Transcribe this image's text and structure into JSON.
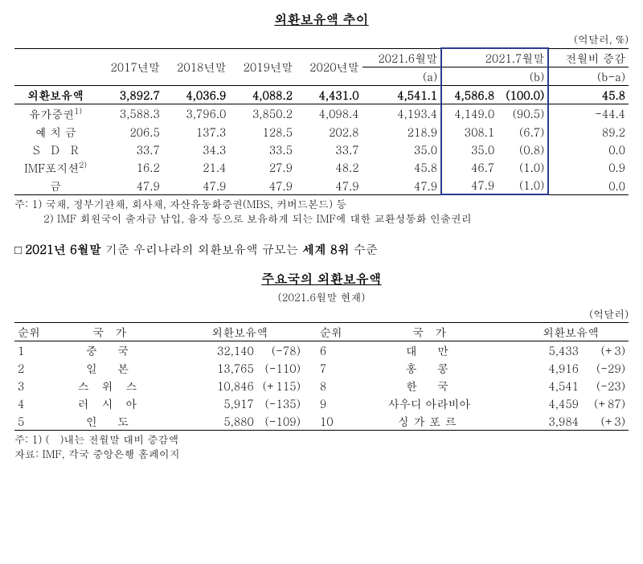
{
  "section1": {
    "title": "외환보유액 추이",
    "unit": "(억달러, %)",
    "headers": {
      "c1": "2017년말",
      "c2": "2018년말",
      "c3": "2019년말",
      "c4": "2020년말",
      "c5a": "2021.6월말",
      "c5b": "(a)",
      "c6a": "2021.7월말",
      "c6b": "(b)",
      "c7a": "전월비 증감",
      "c7b": "(b-a)"
    },
    "rows": [
      {
        "label": "외환보유액",
        "v": [
          "3,892.7",
          "4,036.9",
          "4,088.2",
          "4,431.0",
          "4,541.1",
          "4,586.8",
          "(100.0)",
          "45.8"
        ]
      },
      {
        "label": "유가증권",
        "sup": "1)",
        "v": [
          "3,588.3",
          "3,796.0",
          "3,850.2",
          "4,098.4",
          "4,193.4",
          "4,149.0",
          "(90.5)",
          "-44.4"
        ]
      },
      {
        "label": "예 치 금",
        "v": [
          "206.5",
          "137.3",
          "128.5",
          "202.8",
          "218.9",
          "308.1",
          "(6.7)",
          "89.2"
        ]
      },
      {
        "label": "S　D　R",
        "v": [
          "33.7",
          "34.3",
          "33.5",
          "33.7",
          "35.0",
          "35.0",
          "(0.8)",
          "0.0"
        ]
      },
      {
        "label": "IMF포지션",
        "sup": "2)",
        "v": [
          "16.2",
          "21.4",
          "27.9",
          "48.2",
          "45.8",
          "46.7",
          "(1.0)",
          "0.9"
        ]
      },
      {
        "label": "금",
        "v": [
          "47.9",
          "47.9",
          "47.9",
          "47.9",
          "47.9",
          "47.9",
          "(1.0)",
          "0.0"
        ]
      }
    ],
    "notes": {
      "n1": "주: 1) 국채, 정부기관채, 회사채, 자산유동화증권(MBS, 커버드본드) 등",
      "n2": "2) IMF 회원국이 출자금 납입, 융자 등으로 보유하게 되는 IMF에 대한 교환성통화 인출권리"
    }
  },
  "midline": {
    "prefix": "□ ",
    "bold1": "2021년 6월말",
    "mid": " 기준 우리나라의 외환보유액 규모는 ",
    "bold2": "세계 8위",
    "suffix": " 수준"
  },
  "section2": {
    "title": "주요국의 외환보유액",
    "subtitle": "(2021.6월말 현재)",
    "unit": "(억달러)",
    "headers": {
      "rank": "순위",
      "country": "국　가",
      "amount": "외환보유액"
    },
    "left": [
      {
        "r": "1",
        "c": "중　국",
        "a": "32,140",
        "d": "(-78)"
      },
      {
        "r": "2",
        "c": "일　본",
        "a": "13,765",
        "d": "(-110)"
      },
      {
        "r": "3",
        "c": "스 위 스",
        "a": "10,846",
        "d": "(+115)"
      },
      {
        "r": "4",
        "c": "러 시 아",
        "a": "5,917",
        "d": "(-135)"
      },
      {
        "r": "5",
        "c": "인　도",
        "a": "5,880",
        "d": "(-109)"
      }
    ],
    "right": [
      {
        "r": "6",
        "c": "대　만",
        "a": "5,433",
        "d": "(+3)"
      },
      {
        "r": "7",
        "c": "홍　콩",
        "a": "4,916",
        "d": "(-29)"
      },
      {
        "r": "8",
        "c": "한　국",
        "a": "4,541",
        "d": "(-23)",
        "bold": true
      },
      {
        "r": "9",
        "c": "사우디 아라비아",
        "a": "4,459",
        "d": "(+87)"
      },
      {
        "r": "10",
        "c": "싱가포르",
        "a": "3,984",
        "d": "(+3)"
      }
    ],
    "notes": {
      "n1": "주: 1) (　)내는 전월말 대비 증감액",
      "n2": "자료: IMF, 각국 중앙은행 홈페이지"
    }
  }
}
